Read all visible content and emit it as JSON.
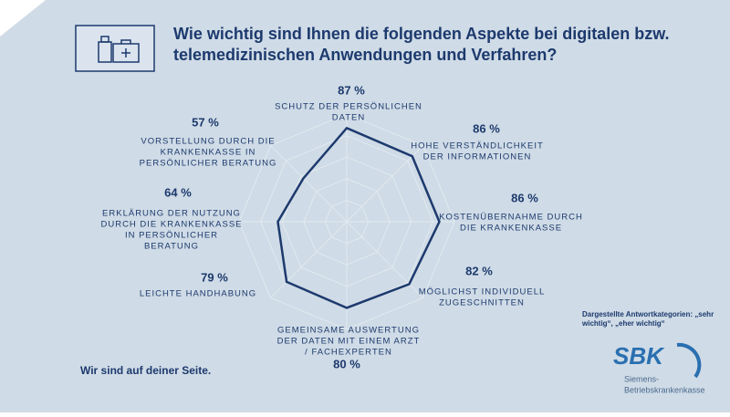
{
  "chart_data": {
    "type": "radar",
    "title": [
      "Wie wichtig sind Ihnen die folgenden Aspekte bei digitalen bzw.",
      "telemedizinischen Anwendungen und Verfahren?"
    ],
    "categories": [
      [
        "SCHUTZ DER PERSÖNLICHEN",
        "DATEN"
      ],
      [
        "HOHE VERSTÄNDLICHKEIT",
        "DER INFORMATIONEN"
      ],
      [
        "KOSTENÜBERNAHME DURCH",
        "DIE KRANKENKASSE"
      ],
      [
        "MÖGLICHST INDIVIDUELL",
        "ZUGESCHNITTEN"
      ],
      [
        "GEMEINSAME AUSWERTUNG",
        "DER DATEN MIT EINEM ARZT",
        "/ FACHEXPERTEN"
      ],
      [
        "LEICHTE HANDHABUNG"
      ],
      [
        "ERKLÄRUNG DER NUTZUNG",
        "DURCH DIE KRANKENKASSE",
        "IN PERSÖNLICHER",
        "BERATUNG"
      ],
      [
        "VORSTELLUNG DURCH DIE",
        "KRANKENKASSE IN",
        "PERSÖNLICHER BERATUNG"
      ]
    ],
    "values": [
      87,
      86,
      86,
      82,
      80,
      79,
      64,
      57
    ],
    "value_labels": [
      "87 %",
      "86 %",
      "86 %",
      "82 %",
      "80 %",
      "79 %",
      "64 %",
      "57 %"
    ],
    "color": "#1d3a6e",
    "rlim": [
      0,
      100
    ],
    "rticks": [
      20,
      40,
      60,
      80,
      100
    ],
    "grid": true,
    "note": [
      "Dargestellte Antwortkategorien: „sehr",
      "wichtig“, „eher wichtig“"
    ]
  },
  "footer": {
    "slogan": "Wir sind auf deiner Seite.",
    "logo": "SBK",
    "logo_text": [
      "Siemens-",
      "Betriebskrankenkasse"
    ]
  }
}
